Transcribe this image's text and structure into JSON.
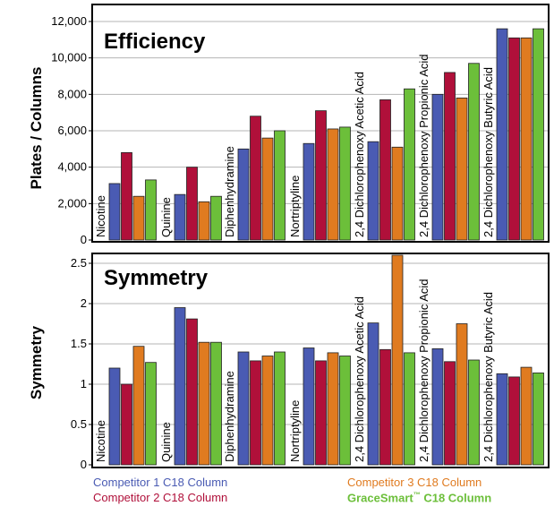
{
  "series_colors": [
    "#4a5bb3",
    "#b0103a",
    "#e07b20",
    "#6cbf3a"
  ],
  "legend": {
    "c1": "Competitor 1 C18 Column",
    "c2": "Competitor 2 C18 Column",
    "c3": "Competitor 3 C18 Column",
    "gs_main": "GraceSmart",
    "gs_tm": "™",
    "gs_rest": " C18 Column"
  },
  "chart_data": [
    {
      "type": "bar",
      "title": "Efficiency",
      "ylabel": "Plates / Columns",
      "ylim": [
        0,
        12000
      ],
      "yticks": [
        "0",
        "2,000",
        "4,000",
        "6,000",
        "8,000",
        "10,000",
        "12,000"
      ],
      "yticks_values": [
        0,
        2000,
        4000,
        6000,
        8000,
        10000,
        12000
      ],
      "grid": true,
      "categories": [
        "Nicotine",
        "Quinine",
        "Diphenhydramine",
        "Nortriptyline",
        "2,4 Dichlorophenoxy Acetic  Acid",
        "2,4 Dichlorophenoxy Propionic Acid",
        "2,4 Dichlorophenoxy Butyric Acid"
      ],
      "series": [
        {
          "name": "Competitor 1 C18 Column",
          "values": [
            3100,
            2500,
            5000,
            5300,
            5400,
            8000,
            11600
          ]
        },
        {
          "name": "Competitor 2 C18 Column",
          "values": [
            4800,
            4000,
            6800,
            7100,
            7700,
            9200,
            11100
          ]
        },
        {
          "name": "Competitor 3 C18 Column",
          "values": [
            2400,
            2100,
            5600,
            6100,
            5100,
            7800,
            11100
          ]
        },
        {
          "name": "GraceSmart™ C18 Column",
          "values": [
            3300,
            2400,
            6000,
            6200,
            8300,
            9700,
            11600
          ]
        }
      ]
    },
    {
      "type": "bar",
      "title": "Symmetry",
      "ylabel": "Symmetry",
      "ylim": [
        0,
        2.6
      ],
      "yticks": [
        "0",
        "0.5",
        "1",
        "1.5",
        "2",
        "2.5"
      ],
      "yticks_values": [
        0,
        0.5,
        1,
        1.5,
        2,
        2.5
      ],
      "grid": true,
      "categories": [
        "Nicotine",
        "Quinine",
        "Diphenhydramine",
        "Nortriptyline",
        "2,4 Dichlorophenoxy Acetic  Acid",
        "2,4 Dichlorophenoxy Propionic Acid",
        "2,4 Dichlorophenoxy Butyric Acid"
      ],
      "series": [
        {
          "name": "Competitor 1 C18 Column",
          "values": [
            1.2,
            1.95,
            1.4,
            1.45,
            1.76,
            1.44,
            1.13
          ]
        },
        {
          "name": "Competitor 2 C18 Column",
          "values": [
            1.0,
            1.81,
            1.29,
            1.29,
            1.43,
            1.28,
            1.09
          ]
        },
        {
          "name": "Competitor 3 C18 Column",
          "values": [
            1.47,
            1.52,
            1.35,
            1.39,
            2.6,
            1.75,
            1.21
          ]
        },
        {
          "name": "GraceSmart™ C18 Column",
          "values": [
            1.27,
            1.52,
            1.4,
            1.35,
            1.39,
            1.3,
            1.14
          ]
        }
      ]
    }
  ]
}
